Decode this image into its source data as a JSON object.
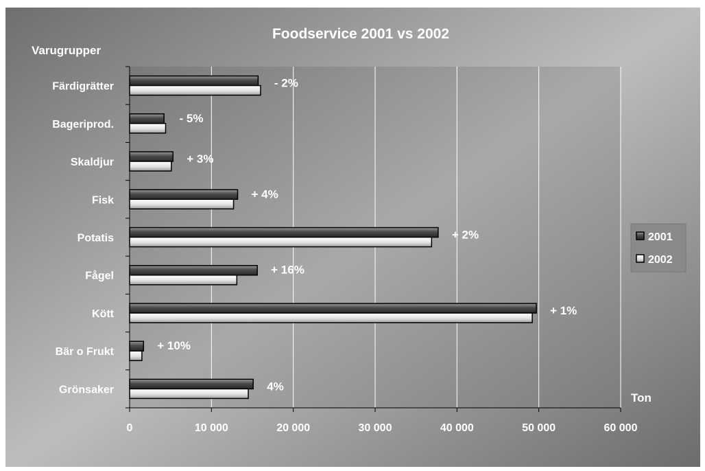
{
  "chart_data": {
    "type": "bar",
    "orientation": "horizontal",
    "title": "Foodservice 2001 vs 2002",
    "ylabel": "Varugrupper",
    "xlabel": "Ton",
    "categories": [
      "Färdigrätter",
      "Bageriprod.",
      "Skaldjur",
      "Fisk",
      "Potatis",
      "Fågel",
      "Kött",
      "Bär o Frukt",
      "Grönsaker"
    ],
    "series": [
      {
        "name": "2001",
        "values": [
          15700,
          4200,
          5300,
          13200,
          37700,
          15600,
          49700,
          1700,
          15100
        ],
        "color": "#555555"
      },
      {
        "name": "2002",
        "values": [
          16000,
          4400,
          5100,
          12700,
          36900,
          13100,
          49200,
          1500,
          14500
        ],
        "color": "#d8d8d8"
      }
    ],
    "annotations": [
      "- 2%",
      "- 5%",
      "+ 3%",
      "+ 4%",
      "+ 2%",
      "+ 16%",
      "+ 1%",
      "+ 10%",
      "4%"
    ],
    "xlim": [
      0,
      60000
    ],
    "xticks": [
      0,
      10000,
      20000,
      30000,
      40000,
      50000,
      60000
    ],
    "xtick_labels": [
      "0",
      "10 000",
      "20 000",
      "30 000",
      "40 000",
      "50 000",
      "60 000"
    ],
    "grid": true,
    "legend_position": "right"
  }
}
